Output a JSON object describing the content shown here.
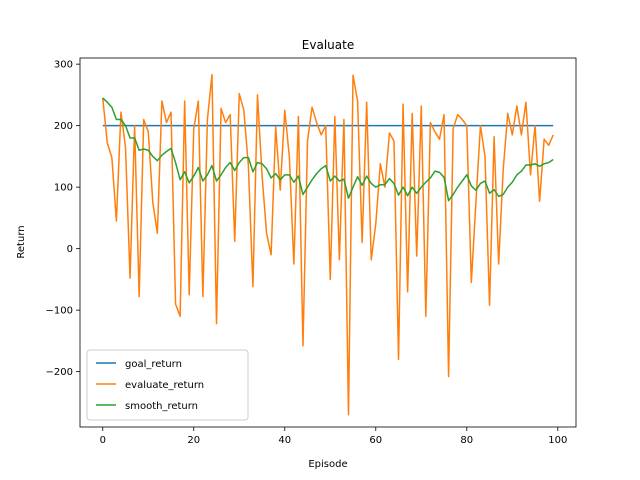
{
  "chart_data": {
    "type": "line",
    "title": "Evaluate",
    "xlabel": "Episode",
    "ylabel": "Return",
    "xlim": [
      -5,
      104
    ],
    "ylim": [
      -290,
      310
    ],
    "xticks": [
      0,
      20,
      40,
      60,
      80,
      100
    ],
    "yticks": [
      -200,
      -100,
      0,
      100,
      200,
      300
    ],
    "ytick_labels": [
      "−200",
      "−100",
      "0",
      "100",
      "200",
      "300"
    ],
    "grid": false,
    "legend": "bottom-left",
    "x": [
      0,
      1,
      2,
      3,
      4,
      5,
      6,
      7,
      8,
      9,
      10,
      11,
      12,
      13,
      14,
      15,
      16,
      17,
      18,
      19,
      20,
      21,
      22,
      23,
      24,
      25,
      26,
      27,
      28,
      29,
      30,
      31,
      32,
      33,
      34,
      35,
      36,
      37,
      38,
      39,
      40,
      41,
      42,
      43,
      44,
      45,
      46,
      47,
      48,
      49,
      50,
      51,
      52,
      53,
      54,
      55,
      56,
      57,
      58,
      59,
      60,
      61,
      62,
      63,
      64,
      65,
      66,
      67,
      68,
      69,
      70,
      71,
      72,
      73,
      74,
      75,
      76,
      77,
      78,
      79,
      80,
      81,
      82,
      83,
      84,
      85,
      86,
      87,
      88,
      89,
      90,
      91,
      92,
      93,
      94,
      95,
      96,
      97,
      98,
      99
    ],
    "series": [
      {
        "name": "goal_return",
        "color": "#1f77b4",
        "values": [
          200,
          200,
          200,
          200,
          200,
          200,
          200,
          200,
          200,
          200,
          200,
          200,
          200,
          200,
          200,
          200,
          200,
          200,
          200,
          200,
          200,
          200,
          200,
          200,
          200,
          200,
          200,
          200,
          200,
          200,
          200,
          200,
          200,
          200,
          200,
          200,
          200,
          200,
          200,
          200,
          200,
          200,
          200,
          200,
          200,
          200,
          200,
          200,
          200,
          200,
          200,
          200,
          200,
          200,
          200,
          200,
          200,
          200,
          200,
          200,
          200,
          200,
          200,
          200,
          200,
          200,
          200,
          200,
          200,
          200,
          200,
          200,
          200,
          200,
          200,
          200,
          200,
          200,
          200,
          200,
          200,
          200,
          200,
          200,
          200,
          200,
          200,
          200,
          200,
          200,
          200,
          200,
          200,
          200,
          200,
          200,
          200,
          200,
          200,
          200
        ]
      },
      {
        "name": "evaluate_return",
        "color": "#ff7f0e",
        "values": [
          245,
          172,
          148,
          45,
          222,
          165,
          -48,
          200,
          -78,
          210,
          190,
          75,
          25,
          240,
          205,
          222,
          -90,
          -110,
          240,
          -75,
          195,
          240,
          -78,
          210,
          283,
          -122,
          228,
          205,
          218,
          12,
          252,
          225,
          135,
          -62,
          250,
          120,
          25,
          -10,
          198,
          95,
          225,
          150,
          -25,
          215,
          -158,
          175,
          230,
          205,
          185,
          200,
          -50,
          215,
          -18,
          210,
          -270,
          282,
          240,
          10,
          238,
          -18,
          40,
          138,
          100,
          188,
          175,
          -180,
          235,
          -70,
          220,
          -12,
          232,
          -110,
          205,
          190,
          178,
          218,
          -208,
          195,
          218,
          210,
          200,
          -55,
          75,
          200,
          150,
          -92,
          182,
          -25,
          128,
          220,
          185,
          232,
          185,
          238,
          120,
          200,
          77,
          178,
          168,
          185
        ]
      },
      {
        "name": "smooth_return",
        "color": "#2ca02c",
        "values": [
          245,
          238,
          230,
          210,
          210,
          200,
          180,
          180,
          160,
          162,
          160,
          150,
          143,
          152,
          158,
          163,
          140,
          112,
          125,
          107,
          118,
          132,
          110,
          120,
          135,
          110,
          120,
          132,
          140,
          127,
          140,
          148,
          148,
          125,
          140,
          138,
          130,
          115,
          122,
          112,
          120,
          120,
          108,
          118,
          88,
          100,
          112,
          122,
          130,
          135,
          110,
          118,
          110,
          113,
          82,
          100,
          117,
          103,
          118,
          106,
          100,
          104,
          104,
          114,
          106,
          87,
          100,
          86,
          100,
          90,
          100,
          108,
          115,
          126,
          124,
          116,
          78,
          88,
          100,
          110,
          120,
          102,
          95,
          106,
          110,
          90,
          96,
          85,
          88,
          100,
          108,
          120,
          126,
          136,
          136,
          138,
          134,
          138,
          140,
          145
        ]
      }
    ]
  }
}
